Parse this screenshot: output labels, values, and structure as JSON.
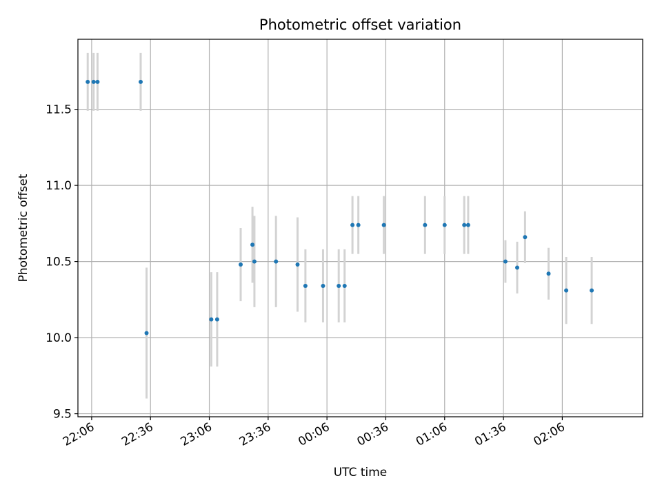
{
  "chart_data": {
    "type": "scatter",
    "title": "Photometric offset variation",
    "xlabel": "UTC time",
    "ylabel": "Photometric offset",
    "x_axis_kind": "time",
    "xlim": [
      "21:59",
      "02:47"
    ],
    "ylim": [
      9.48,
      11.96
    ],
    "grid": true,
    "x_ticks": [
      "22:06",
      "22:36",
      "23:06",
      "23:36",
      "00:06",
      "00:36",
      "01:06",
      "01:36",
      "02:06"
    ],
    "y_ticks": [
      "9.5",
      "10.0",
      "10.5",
      "11.0",
      "11.5"
    ],
    "colors": {
      "marker": "#1f77b4",
      "errorbar": "#d3d3d3",
      "grid": "#b0b0b0"
    },
    "points": [
      {
        "x": "22:04",
        "y": 11.68,
        "err": 0.19
      },
      {
        "x": "22:07",
        "y": 11.68,
        "err": 0.19
      },
      {
        "x": "22:09",
        "y": 11.68,
        "err": 0.19
      },
      {
        "x": "22:31",
        "y": 11.68,
        "err": 0.19
      },
      {
        "x": "22:34",
        "y": 10.03,
        "err": 0.43
      },
      {
        "x": "23:07",
        "y": 10.12,
        "err": 0.31
      },
      {
        "x": "23:10",
        "y": 10.12,
        "err": 0.31
      },
      {
        "x": "23:22",
        "y": 10.48,
        "err": 0.24
      },
      {
        "x": "23:28",
        "y": 10.61,
        "err": 0.25
      },
      {
        "x": "23:29",
        "y": 10.5,
        "err": 0.3
      },
      {
        "x": "23:40",
        "y": 10.5,
        "err": 0.3
      },
      {
        "x": "23:51",
        "y": 10.48,
        "err": 0.31
      },
      {
        "x": "23:55",
        "y": 10.34,
        "err": 0.24
      },
      {
        "x": "00:04",
        "y": 10.34,
        "err": 0.24
      },
      {
        "x": "00:12",
        "y": 10.34,
        "err": 0.24
      },
      {
        "x": "00:15",
        "y": 10.34,
        "err": 0.24
      },
      {
        "x": "00:19",
        "y": 10.74,
        "err": 0.19
      },
      {
        "x": "00:22",
        "y": 10.74,
        "err": 0.19
      },
      {
        "x": "00:35",
        "y": 10.74,
        "err": 0.19
      },
      {
        "x": "00:56",
        "y": 10.74,
        "err": 0.19
      },
      {
        "x": "01:06",
        "y": 10.74,
        "err": 0.19
      },
      {
        "x": "01:16",
        "y": 10.74,
        "err": 0.19
      },
      {
        "x": "01:18",
        "y": 10.74,
        "err": 0.19
      },
      {
        "x": "01:37",
        "y": 10.5,
        "err": 0.14
      },
      {
        "x": "01:43",
        "y": 10.46,
        "err": 0.17
      },
      {
        "x": "01:47",
        "y": 10.66,
        "err": 0.17
      },
      {
        "x": "01:59",
        "y": 10.42,
        "err": 0.17
      },
      {
        "x": "02:08",
        "y": 10.31,
        "err": 0.22
      },
      {
        "x": "02:21",
        "y": 10.31,
        "err": 0.22
      }
    ]
  }
}
